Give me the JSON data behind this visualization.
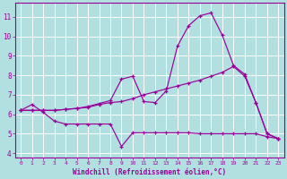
{
  "background_color": "#b2e0e0",
  "line_color": "#990099",
  "grid_color": "#c8d8d8",
  "xlabel": "Windchill (Refroidissement éolien,°C)",
  "xlim": [
    -0.5,
    23.5
  ],
  "ylim": [
    3.8,
    11.7
  ],
  "xticks": [
    0,
    1,
    2,
    3,
    4,
    5,
    6,
    7,
    8,
    9,
    10,
    11,
    12,
    13,
    14,
    15,
    16,
    17,
    18,
    19,
    20,
    21,
    22,
    23
  ],
  "yticks": [
    4,
    5,
    6,
    7,
    8,
    9,
    10,
    11
  ],
  "series1_x": [
    0,
    1,
    2,
    3,
    4,
    5,
    6,
    7,
    8,
    9,
    10,
    11,
    12,
    13,
    14,
    15,
    16,
    17,
    18,
    19,
    20,
    21,
    22,
    23
  ],
  "series1_y": [
    6.2,
    6.5,
    6.1,
    5.65,
    5.5,
    5.5,
    5.5,
    5.5,
    5.5,
    4.35,
    5.05,
    5.05,
    5.05,
    5.05,
    5.05,
    5.05,
    5.0,
    5.0,
    5.0,
    5.0,
    5.0,
    5.0,
    4.85,
    4.75
  ],
  "series2_x": [
    0,
    1,
    2,
    3,
    4,
    5,
    6,
    7,
    8,
    9,
    10,
    11,
    12,
    13,
    14,
    15,
    16,
    17,
    18,
    19,
    20,
    21,
    22,
    23
  ],
  "series2_y": [
    6.2,
    6.2,
    6.2,
    6.2,
    6.25,
    6.3,
    6.35,
    6.5,
    6.6,
    6.65,
    6.8,
    7.0,
    7.15,
    7.3,
    7.45,
    7.6,
    7.75,
    7.95,
    8.15,
    8.45,
    7.95,
    6.6,
    5.0,
    4.75
  ],
  "series3_x": [
    0,
    1,
    2,
    3,
    4,
    5,
    6,
    7,
    8,
    9,
    10,
    11,
    12,
    13,
    14,
    15,
    16,
    17,
    18,
    19,
    20,
    21,
    22,
    23
  ],
  "series3_y": [
    6.2,
    6.2,
    6.2,
    6.2,
    6.25,
    6.3,
    6.4,
    6.55,
    6.7,
    7.8,
    7.95,
    6.65,
    6.6,
    7.2,
    9.5,
    10.55,
    11.05,
    11.2,
    10.05,
    8.5,
    8.05,
    6.6,
    5.0,
    4.75
  ]
}
